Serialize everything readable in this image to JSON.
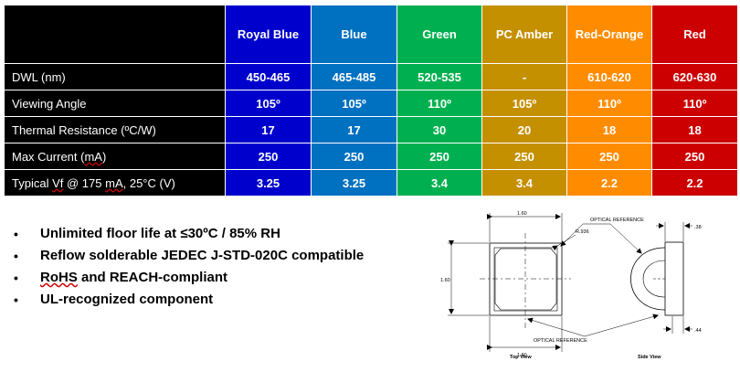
{
  "table": {
    "columns": [
      "",
      "Royal Blue",
      "Blue",
      "Green",
      "PC Amber",
      "Red-Orange",
      "Red"
    ],
    "rows": [
      {
        "label": "DWL (nm)",
        "values": [
          "450-465",
          "465-485",
          "520-535",
          "-",
          "610-620",
          "620-630"
        ]
      },
      {
        "label": "Viewing Angle",
        "values": [
          "105º",
          "105º",
          "110º",
          "105º",
          "110º",
          "110º"
        ]
      },
      {
        "label": "Thermal Resistance (ºC/W)",
        "values": [
          "17",
          "17",
          "30",
          "20",
          "18",
          "18"
        ]
      },
      {
        "label_parts": [
          "Max Current (",
          "mA",
          ")"
        ],
        "values": [
          "250",
          "250",
          "250",
          "250",
          "250",
          "250"
        ]
      },
      {
        "label_parts": [
          "Typical ",
          "Vf",
          " @ 175 ",
          "mA",
          ", 25°C (V)"
        ],
        "values": [
          "3.25",
          "3.25",
          "3.4",
          "3.4",
          "2.2",
          "2.2"
        ]
      }
    ],
    "colors": [
      "#000000",
      "#0000cc",
      "#0070c0",
      "#00b050",
      "#c59000",
      "#ff8c00",
      "#cc0000"
    ]
  },
  "bullets": [
    {
      "parts": [
        "Unlimited floor life at ≤30ºC / 85% RH"
      ]
    },
    {
      "parts": [
        "Reflow solderable JEDEC J-STD-020C compatible"
      ]
    },
    {
      "parts": [
        "RoHS",
        " and REACH-compliant"
      ]
    },
    {
      "parts": [
        "UL-recognized component"
      ]
    }
  ],
  "bullet_glyph": "•",
  "drawing": {
    "dim_width": "1.60",
    "dim_height": "1.60",
    "dim_radius": "R.936",
    "dim_bottom": "1.60",
    "dim_side_top": ".38",
    "dim_side_bottom": ".44",
    "optical_reference_top": "OPTICAL REFERENCE",
    "optical_reference_bottom": "OPTICAL REFERENCE",
    "top_view": "Top View",
    "side_view": "Side View"
  }
}
